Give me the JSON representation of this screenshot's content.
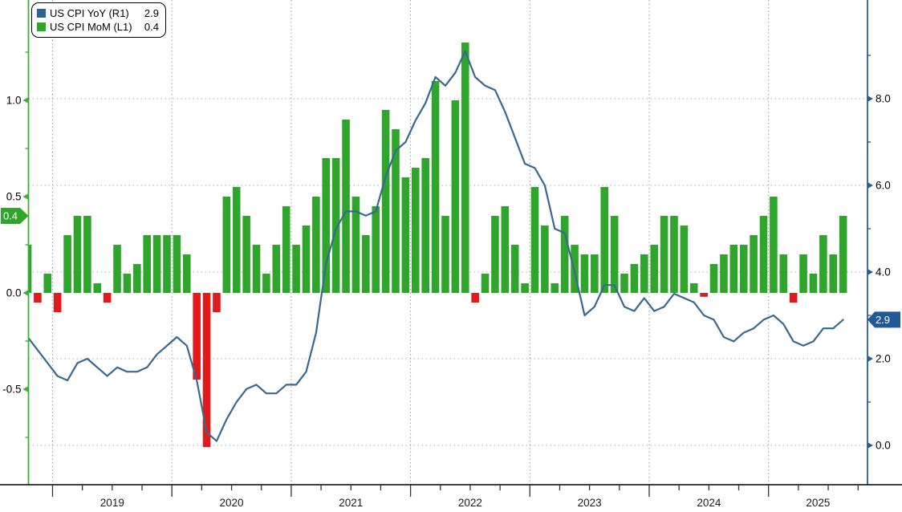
{
  "legend": {
    "items": [
      {
        "label": "US CPI YoY (R1)",
        "value": "2.9",
        "color": "#2b6399"
      },
      {
        "label": "US CPI MoM (L1)",
        "value": "0.4",
        "color": "#2fa52c"
      }
    ]
  },
  "left_axis": {
    "tick_labels": [
      "1.0",
      "0.5",
      "0.0",
      "-0.5"
    ],
    "tick_values": [
      1.0,
      0.5,
      0.0,
      -0.5
    ],
    "minor_tick_values": [
      1.25,
      0.75,
      0.25,
      -0.25,
      -0.75
    ],
    "current_badge": "0.4",
    "current_value": 0.4,
    "color": "#3fae3a"
  },
  "right_axis": {
    "tick_labels": [
      "8.0",
      "6.0",
      "4.0",
      "2.0",
      "0.0"
    ],
    "tick_values": [
      8.0,
      6.0,
      4.0,
      2.0,
      0.0
    ],
    "minor_tick_values": [
      9.0,
      7.0,
      5.0,
      3.0,
      1.0
    ],
    "current_badge": "2.9",
    "current_value": 2.9,
    "color": "#2c5f8a",
    "badge_color": "#1f5a96"
  },
  "x_axis": {
    "year_labels": [
      "2019",
      "2020",
      "2021",
      "2022",
      "2023",
      "2024",
      "2025"
    ]
  },
  "chart_data": {
    "type": "bar",
    "note": "monthly data, first point Oct 2018, last point Aug 2025",
    "start_month": "2018-10",
    "end_month": "2025-08",
    "left_axis_range": [
      -1.0,
      1.4
    ],
    "right_axis_range": [
      -0.2,
      10.2
    ],
    "grid": "dotted",
    "legend_position": "top-left",
    "series": [
      {
        "name": "US CPI MoM (L1)",
        "type": "bar",
        "axis": "left",
        "color_positive": "#2fa52c",
        "color_negative": "#e11b1b",
        "values": [
          0.25,
          -0.05,
          0.1,
          -0.1,
          0.3,
          0.4,
          0.4,
          0.05,
          -0.05,
          0.25,
          0.1,
          0.15,
          0.3,
          0.3,
          0.3,
          0.3,
          0.2,
          -0.45,
          -0.8,
          -0.1,
          0.5,
          0.55,
          0.4,
          0.25,
          0.1,
          0.25,
          0.45,
          0.25,
          0.35,
          0.5,
          0.7,
          0.7,
          0.9,
          0.5,
          0.3,
          0.45,
          0.95,
          0.85,
          0.6,
          0.65,
          0.7,
          1.1,
          0.4,
          1.0,
          1.3,
          -0.05,
          0.1,
          0.4,
          0.45,
          0.25,
          0.05,
          0.55,
          0.35,
          0.05,
          0.4,
          0.25,
          0.2,
          0.2,
          0.55,
          0.4,
          0.1,
          0.15,
          0.2,
          0.25,
          0.4,
          0.4,
          0.35,
          0.05,
          -0.02,
          0.15,
          0.2,
          0.25,
          0.25,
          0.3,
          0.4,
          0.5,
          0.2,
          -0.05,
          0.2,
          0.1,
          0.3,
          0.2,
          0.4
        ]
      },
      {
        "name": "US CPI YoY (R1)",
        "type": "line",
        "axis": "right",
        "color": "#38688f",
        "values": [
          2.5,
          2.2,
          1.9,
          1.6,
          1.5,
          1.9,
          2.0,
          1.8,
          1.6,
          1.8,
          1.7,
          1.7,
          1.8,
          2.1,
          2.3,
          2.5,
          2.3,
          1.5,
          0.3,
          0.1,
          0.6,
          1.0,
          1.3,
          1.4,
          1.2,
          1.2,
          1.4,
          1.4,
          1.7,
          2.6,
          4.2,
          5.0,
          5.4,
          5.4,
          5.3,
          5.4,
          6.2,
          6.8,
          7.0,
          7.5,
          7.9,
          8.5,
          8.3,
          8.6,
          9.1,
          8.5,
          8.3,
          8.2,
          7.7,
          7.1,
          6.5,
          6.4,
          6.0,
          5.0,
          4.9,
          4.0,
          3.0,
          3.2,
          3.7,
          3.7,
          3.2,
          3.1,
          3.4,
          3.1,
          3.2,
          3.5,
          3.4,
          3.3,
          3.0,
          2.9,
          2.5,
          2.4,
          2.6,
          2.7,
          2.9,
          3.0,
          2.8,
          2.4,
          2.3,
          2.4,
          2.7,
          2.7,
          2.9
        ]
      }
    ]
  },
  "colors": {
    "background": "#ffffff",
    "gridline": "#ababab",
    "year_gridline": "#9a9a9a",
    "bottom_axis": "#000000",
    "text": "#1a1a1a"
  }
}
